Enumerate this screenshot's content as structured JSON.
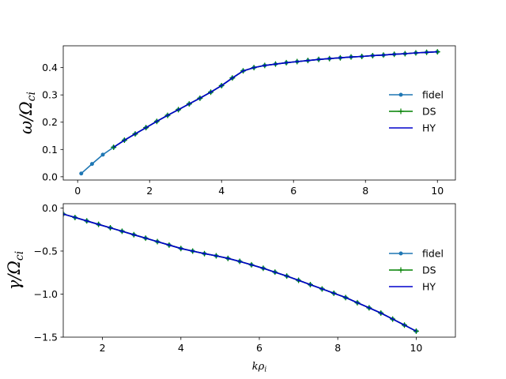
{
  "chart_data": [
    {
      "type": "line",
      "ylabel": "ω/Ω_ci",
      "xlabel": "",
      "xlim": [
        -0.4,
        10.5
      ],
      "ylim": [
        -0.012,
        0.48
      ],
      "xticks": [
        0,
        2,
        4,
        6,
        8,
        10
      ],
      "yticks": [
        0.0,
        0.1,
        0.2,
        0.3,
        0.4
      ],
      "ytick_labels": [
        "0.0",
        "0.1",
        "0.2",
        "0.3",
        "0.4"
      ],
      "legend_position": "center-right",
      "grid": false,
      "series": [
        {
          "name": "fidel",
          "color": "#1f77b4",
          "marker": "dot",
          "x": [
            0.1,
            0.4,
            0.7,
            1.0,
            1.3,
            1.6,
            1.9,
            2.2,
            2.5,
            2.8,
            3.1,
            3.4,
            3.7,
            4.0,
            4.3,
            4.6,
            4.9,
            5.2,
            5.5,
            5.8,
            6.1,
            6.4,
            6.7,
            7.0,
            7.3,
            7.6,
            7.9,
            8.2,
            8.5,
            8.8,
            9.1,
            9.4,
            9.7,
            10.0
          ],
          "y": [
            0.012,
            0.047,
            0.081,
            0.108,
            0.134,
            0.157,
            0.18,
            0.203,
            0.225,
            0.246,
            0.267,
            0.288,
            0.31,
            0.334,
            0.362,
            0.388,
            0.4,
            0.408,
            0.413,
            0.418,
            0.422,
            0.426,
            0.43,
            0.433,
            0.436,
            0.439,
            0.441,
            0.444,
            0.446,
            0.449,
            0.451,
            0.454,
            0.456,
            0.458
          ]
        },
        {
          "name": "DS",
          "color": "#008000",
          "marker": "plus",
          "x": [
            1.0,
            1.3,
            1.6,
            1.9,
            2.2,
            2.5,
            2.8,
            3.1,
            3.4,
            3.7,
            4.0,
            4.3,
            4.6,
            4.9,
            5.2,
            5.5,
            5.8,
            6.1,
            6.4,
            6.7,
            7.0,
            7.3,
            7.6,
            7.9,
            8.2,
            8.5,
            8.8,
            9.1,
            9.4,
            9.7,
            10.0
          ],
          "y": [
            0.108,
            0.134,
            0.157,
            0.18,
            0.203,
            0.225,
            0.246,
            0.267,
            0.288,
            0.31,
            0.334,
            0.362,
            0.388,
            0.4,
            0.408,
            0.413,
            0.418,
            0.422,
            0.426,
            0.43,
            0.433,
            0.436,
            0.439,
            0.441,
            0.444,
            0.446,
            0.449,
            0.451,
            0.454,
            0.456,
            0.458
          ]
        },
        {
          "name": "HY",
          "color": "#0000cc",
          "marker": "none",
          "x": [
            1.0,
            1.3,
            1.6,
            1.9,
            2.2,
            2.5,
            2.8,
            3.1,
            3.4,
            3.7,
            4.0,
            4.3,
            4.6,
            4.9,
            5.2,
            5.5,
            5.8,
            6.1,
            6.4,
            6.7,
            7.0,
            7.3,
            7.6,
            7.9,
            8.2,
            8.5,
            8.8,
            9.1,
            9.4,
            9.7,
            10.0
          ],
          "y": [
            0.108,
            0.134,
            0.157,
            0.18,
            0.203,
            0.225,
            0.246,
            0.267,
            0.288,
            0.31,
            0.334,
            0.362,
            0.388,
            0.4,
            0.408,
            0.413,
            0.418,
            0.422,
            0.426,
            0.43,
            0.433,
            0.436,
            0.439,
            0.441,
            0.444,
            0.446,
            0.449,
            0.451,
            0.454,
            0.456,
            0.458
          ]
        }
      ]
    },
    {
      "type": "line",
      "ylabel": "γ/Ω_ci",
      "xlabel": "kρ_i",
      "xlim": [
        1.0,
        11.0
      ],
      "ylim": [
        -1.5,
        0.05
      ],
      "xticks": [
        2,
        4,
        6,
        8,
        10
      ],
      "yticks": [
        0.0,
        -0.5,
        -1.0,
        -1.5
      ],
      "ytick_labels": [
        "0.0",
        "−0.5",
        "−1.0",
        "−1.5"
      ],
      "legend_position": "center-right",
      "grid": false,
      "series": [
        {
          "name": "fidel",
          "color": "#1f77b4",
          "marker": "dot",
          "x": [
            1.0,
            1.3,
            1.6,
            1.9,
            2.2,
            2.5,
            2.8,
            3.1,
            3.4,
            3.7,
            4.0,
            4.3,
            4.6,
            4.9,
            5.2,
            5.5,
            5.8,
            6.1,
            6.4,
            6.7,
            7.0,
            7.3,
            7.6,
            7.9,
            8.2,
            8.5,
            8.8,
            9.1,
            9.4,
            9.7,
            10.0
          ],
          "y": [
            -0.07,
            -0.11,
            -0.15,
            -0.19,
            -0.23,
            -0.27,
            -0.31,
            -0.35,
            -0.39,
            -0.43,
            -0.47,
            -0.5,
            -0.53,
            -0.555,
            -0.585,
            -0.62,
            -0.66,
            -0.7,
            -0.745,
            -0.79,
            -0.84,
            -0.89,
            -0.94,
            -0.99,
            -1.04,
            -1.1,
            -1.16,
            -1.22,
            -1.29,
            -1.36,
            -1.43
          ]
        },
        {
          "name": "DS",
          "color": "#008000",
          "marker": "plus",
          "x": [
            1.0,
            1.3,
            1.6,
            1.9,
            2.2,
            2.5,
            2.8,
            3.1,
            3.4,
            3.7,
            4.0,
            4.3,
            4.6,
            4.9,
            5.2,
            5.5,
            5.8,
            6.1,
            6.4,
            6.7,
            7.0,
            7.3,
            7.6,
            7.9,
            8.2,
            8.5,
            8.8,
            9.1,
            9.4,
            9.7,
            10.0
          ],
          "y": [
            -0.07,
            -0.11,
            -0.15,
            -0.19,
            -0.23,
            -0.27,
            -0.31,
            -0.35,
            -0.39,
            -0.43,
            -0.47,
            -0.5,
            -0.53,
            -0.555,
            -0.585,
            -0.62,
            -0.66,
            -0.7,
            -0.745,
            -0.79,
            -0.84,
            -0.89,
            -0.94,
            -0.99,
            -1.04,
            -1.1,
            -1.16,
            -1.22,
            -1.29,
            -1.36,
            -1.43
          ]
        },
        {
          "name": "HY",
          "color": "#0000cc",
          "marker": "none",
          "x": [
            1.0,
            1.3,
            1.6,
            1.9,
            2.2,
            2.5,
            2.8,
            3.1,
            3.4,
            3.7,
            4.0,
            4.3,
            4.6,
            4.9,
            5.2,
            5.5,
            5.8,
            6.1,
            6.4,
            6.7,
            7.0,
            7.3,
            7.6,
            7.9,
            8.2,
            8.5,
            8.8,
            9.1,
            9.4,
            9.7,
            10.0
          ],
          "y": [
            -0.07,
            -0.11,
            -0.15,
            -0.19,
            -0.23,
            -0.27,
            -0.31,
            -0.35,
            -0.39,
            -0.43,
            -0.47,
            -0.5,
            -0.53,
            -0.555,
            -0.585,
            -0.62,
            -0.66,
            -0.7,
            -0.745,
            -0.79,
            -0.84,
            -0.89,
            -0.94,
            -0.99,
            -1.04,
            -1.1,
            -1.16,
            -1.22,
            -1.29,
            -1.36,
            -1.43
          ]
        }
      ]
    }
  ]
}
